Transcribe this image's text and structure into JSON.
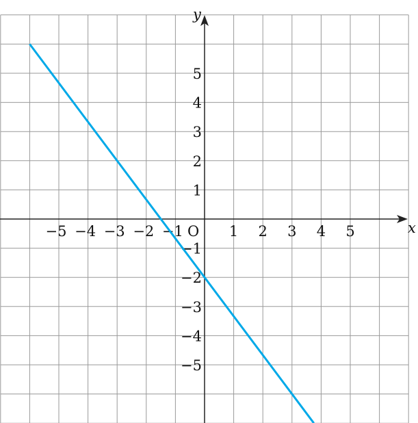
{
  "chart_data": {
    "type": "line",
    "xlabel": "x",
    "ylabel": "y",
    "origin_label": "O",
    "xlim": [
      -7,
      7
    ],
    "ylim": [
      -7,
      7
    ],
    "grid": true,
    "x_ticks": [
      -5,
      -4,
      -3,
      -2,
      -1,
      1,
      2,
      3,
      4,
      5
    ],
    "y_ticks": [
      5,
      4,
      3,
      2,
      1,
      -1,
      -2,
      -3,
      -4,
      -5
    ],
    "x_tick_labels": [
      "−5",
      "−4",
      "−3",
      "−2",
      "−1",
      "1",
      "2",
      "3",
      "4",
      "5"
    ],
    "y_tick_labels": [
      "5",
      "4",
      "3",
      "2",
      "1",
      "−1",
      "−2",
      "−3",
      "−4",
      "−5"
    ],
    "series": [
      {
        "equation_slope": -1.3333,
        "equation_intercept": -2,
        "points": [
          [
            -6,
            6
          ],
          [
            3.75,
            -7
          ]
        ],
        "color": "#00a9e8"
      }
    ]
  }
}
